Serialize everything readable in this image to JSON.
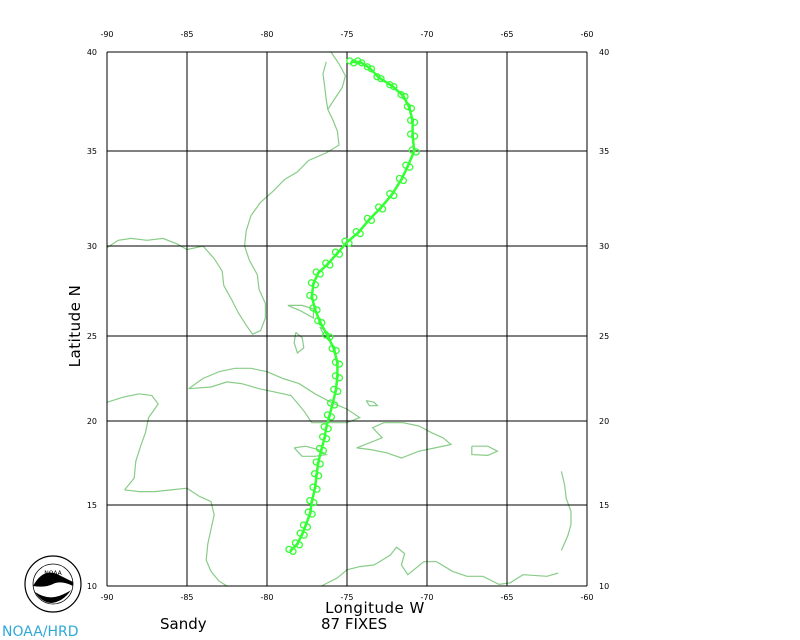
{
  "chart_data": {
    "type": "map",
    "xlabel": "Longitude  W",
    "ylabel": "Latitude  N",
    "xlim": [
      -90,
      -60
    ],
    "ylim": [
      10,
      40
    ],
    "x_ticks": [
      -90,
      -85,
      -80,
      -75,
      -70,
      -65,
      -60
    ],
    "y_ticks": [
      10,
      15,
      20,
      25,
      30,
      35,
      40
    ],
    "grid": true,
    "track_color": "#33ff33",
    "coast_color": "#88cc88",
    "track": [
      [
        -78.5,
        12.2
      ],
      [
        -78.1,
        12.6
      ],
      [
        -77.8,
        13.2
      ],
      [
        -77.6,
        13.7
      ],
      [
        -77.3,
        14.5
      ],
      [
        -77.2,
        15.2
      ],
      [
        -77.0,
        16.0
      ],
      [
        -76.9,
        16.8
      ],
      [
        -76.8,
        17.5
      ],
      [
        -76.6,
        18.3
      ],
      [
        -76.4,
        19.0
      ],
      [
        -76.3,
        19.6
      ],
      [
        -76.1,
        20.3
      ],
      [
        -75.9,
        21.0
      ],
      [
        -75.7,
        21.8
      ],
      [
        -75.6,
        22.6
      ],
      [
        -75.6,
        23.4
      ],
      [
        -75.8,
        24.2
      ],
      [
        -76.2,
        25.0
      ],
      [
        -76.7,
        25.8
      ],
      [
        -77.0,
        26.5
      ],
      [
        -77.2,
        27.2
      ],
      [
        -77.1,
        27.9
      ],
      [
        -76.8,
        28.5
      ],
      [
        -76.2,
        29.0
      ],
      [
        -75.6,
        29.6
      ],
      [
        -75.0,
        30.2
      ],
      [
        -74.3,
        30.7
      ],
      [
        -73.6,
        31.4
      ],
      [
        -72.9,
        32.0
      ],
      [
        -72.2,
        32.7
      ],
      [
        -71.6,
        33.5
      ],
      [
        -71.2,
        34.2
      ],
      [
        -70.8,
        35.0
      ],
      [
        -70.9,
        35.8
      ],
      [
        -70.9,
        36.5
      ],
      [
        -71.1,
        37.2
      ],
      [
        -71.5,
        37.8
      ],
      [
        -72.2,
        38.3
      ],
      [
        -73.0,
        38.7
      ],
      [
        -73.6,
        39.2
      ],
      [
        -74.2,
        39.5
      ],
      [
        -74.7,
        39.5
      ]
    ]
  },
  "footer": {
    "storm_name": "Sandy",
    "fix_count": "87 FIXES",
    "credit": "NOAA/HRD",
    "credit_color": "#2fa8d8",
    "logo_text": "NOAA"
  }
}
